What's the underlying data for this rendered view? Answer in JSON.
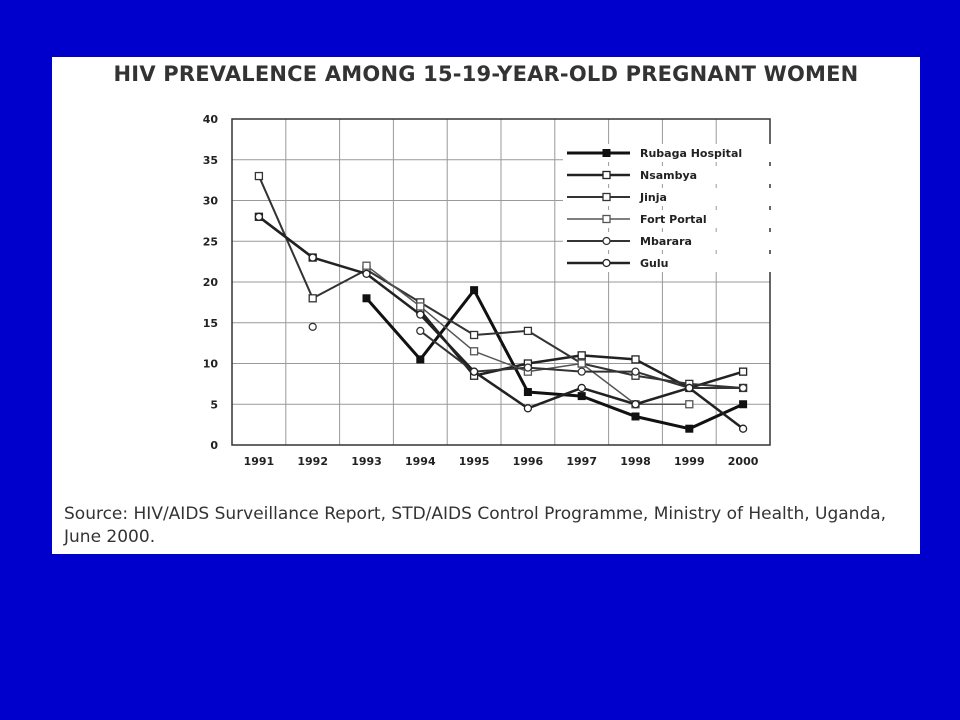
{
  "background_color": "#0000CC",
  "source_text": "Source: HIV/AIDS Surveillance Report, STD/AIDS Control Programme, Ministry of Health, Uganda, June 2000.",
  "chart_data": {
    "type": "line",
    "title": "HIV PREVALENCE AMONG 15-19-YEAR-OLD PREGNANT WOMEN",
    "xlabel": "",
    "ylabel": "",
    "x": [
      1991,
      1992,
      1993,
      1994,
      1995,
      1996,
      1997,
      1998,
      1999,
      2000
    ],
    "x_tick_labels": [
      "1991",
      "1992",
      "1993",
      "1994",
      "1995",
      "1996",
      "1997",
      "1998",
      "1999",
      "2000"
    ],
    "y_ticks": [
      0,
      5,
      10,
      15,
      20,
      25,
      30,
      35,
      40
    ],
    "ylim": [
      0,
      40
    ],
    "grid": true,
    "legend_position": "top-right",
    "series": [
      {
        "name": "Rubaga Hospital",
        "marker": "filled-square",
        "width": 3,
        "color": "#111111",
        "values": [
          null,
          null,
          18,
          10.5,
          19,
          6.5,
          6,
          3.5,
          2,
          5
        ]
      },
      {
        "name": "Nsambya",
        "marker": "square",
        "width": 2.5,
        "color": "#222222",
        "values": [
          28,
          23,
          null,
          16.5,
          8.5,
          10,
          11,
          10.5,
          7,
          9
        ]
      },
      {
        "name": "Jinja",
        "marker": "square",
        "width": 2,
        "color": "#333333",
        "values": [
          33,
          18,
          21.5,
          17.5,
          13.5,
          14,
          10,
          8.5,
          7.5,
          7
        ]
      },
      {
        "name": "Fort Portal",
        "marker": "square",
        "width": 1.5,
        "color": "#555555",
        "values": [
          null,
          null,
          22,
          17,
          11.5,
          9,
          10,
          5,
          5,
          null
        ]
      },
      {
        "name": "Mbarara",
        "marker": "circle",
        "width": 2,
        "color": "#333333",
        "values": [
          null,
          14.5,
          null,
          14,
          9,
          9.5,
          9,
          9,
          7,
          7
        ]
      },
      {
        "name": "Gulu",
        "marker": "circle",
        "width": 2.5,
        "color": "#222222",
        "values": [
          28,
          23,
          21,
          16,
          9,
          4.5,
          7,
          5,
          7,
          2
        ]
      }
    ]
  }
}
